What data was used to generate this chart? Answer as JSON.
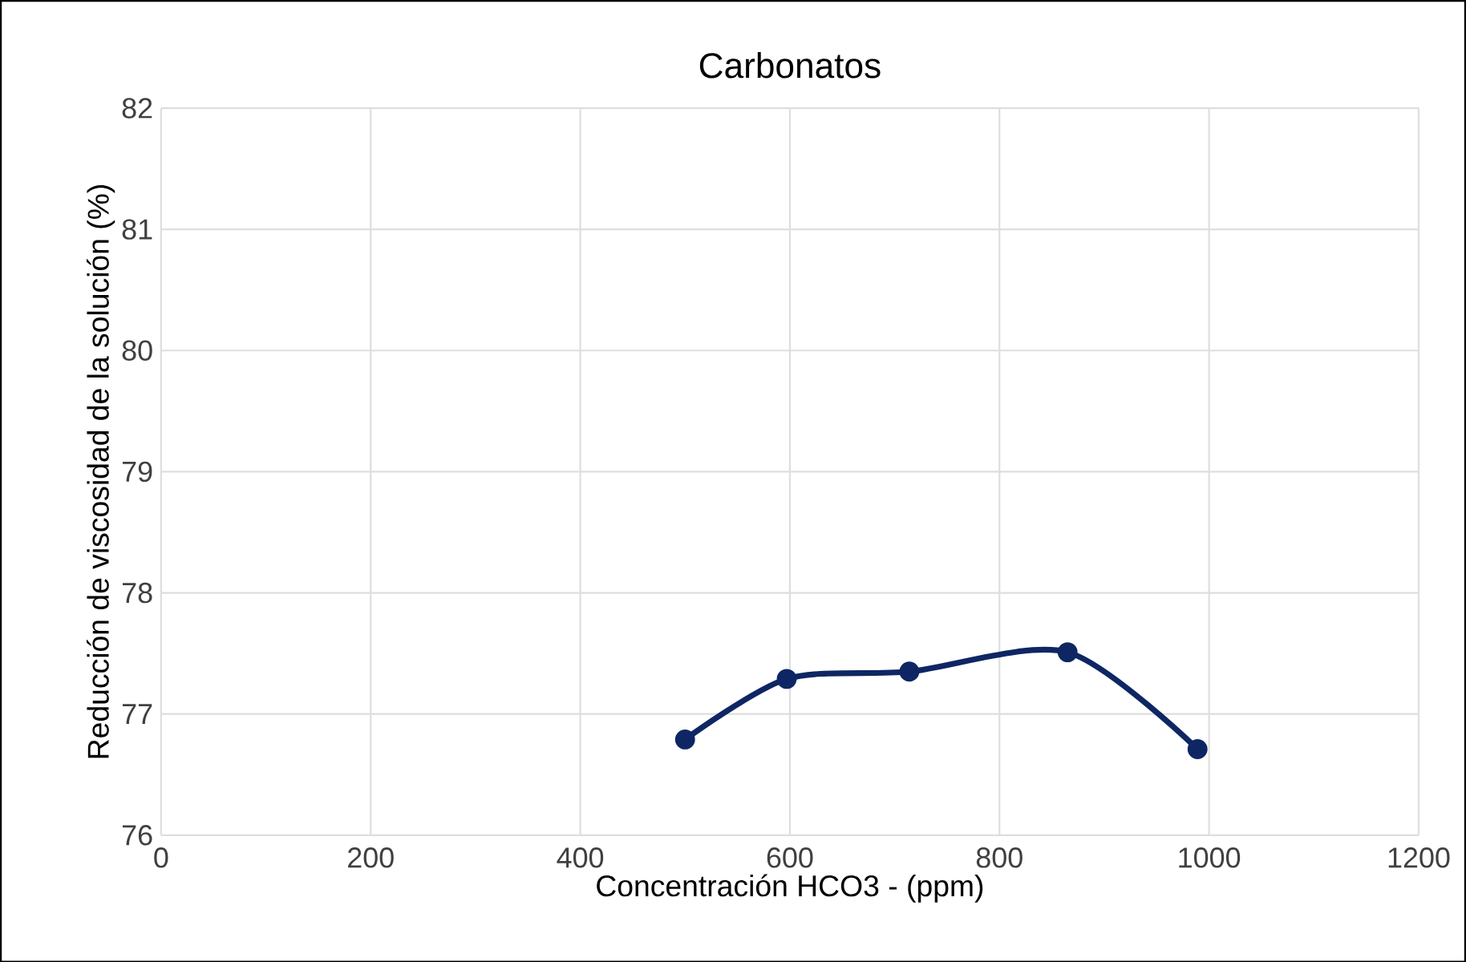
{
  "chart_data": {
    "type": "line",
    "title": "Carbonatos",
    "xlabel": "Concentración HCO3 - (ppm)",
    "ylabel": "Reducción de viscosidad de la solución (%)",
    "x": [
      500,
      597,
      714,
      865,
      989
    ],
    "series": [
      {
        "color": "#0e2663",
        "values": [
          76.79,
          77.29,
          77.35,
          77.51,
          76.71
        ]
      }
    ],
    "xlim": [
      0,
      1200
    ],
    "xticks": [
      0,
      200,
      400,
      600,
      800,
      1000,
      1200
    ],
    "ylim": [
      76,
      82
    ],
    "yticks": [
      76,
      77,
      78,
      79,
      80,
      81,
      82
    ],
    "grid": true,
    "marker": "circle",
    "line_style": "solid"
  }
}
